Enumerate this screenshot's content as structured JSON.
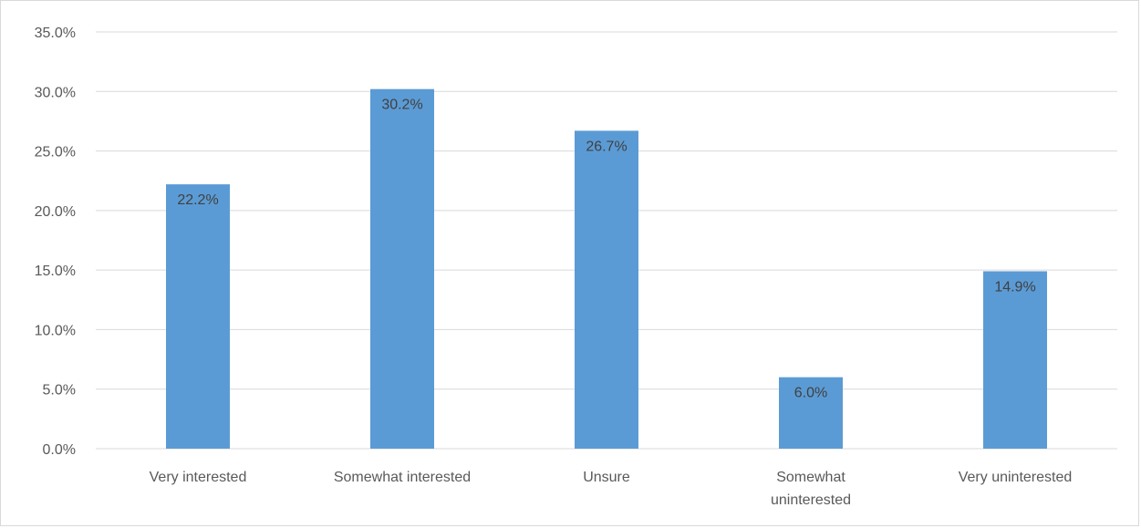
{
  "chart_data": {
    "type": "bar",
    "categories": [
      [
        "Very interested"
      ],
      [
        "Somewhat interested"
      ],
      [
        "Unsure"
      ],
      [
        "Somewhat",
        "uninterested"
      ],
      [
        "Very uninterested"
      ]
    ],
    "values": [
      22.2,
      30.2,
      26.7,
      6.0,
      14.9
    ],
    "data_labels": [
      "22.2%",
      "30.2%",
      "26.7%",
      "6.0%",
      "14.9%"
    ],
    "y_ticks": [
      0,
      5,
      10,
      15,
      20,
      25,
      30,
      35
    ],
    "y_tick_labels": [
      "0.0%",
      "5.0%",
      "10.0%",
      "15.0%",
      "20.0%",
      "25.0%",
      "30.0%",
      "35.0%"
    ],
    "ylim": [
      0,
      35
    ],
    "grid": true,
    "legend": "none",
    "bar_color": "#5b9bd5",
    "grid_color": "#d9d9d9"
  }
}
